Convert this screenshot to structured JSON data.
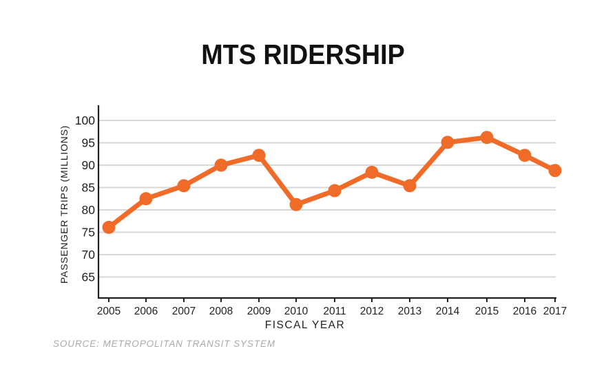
{
  "header": {
    "title": "MTS RIDERSHIP"
  },
  "footer": {
    "source": "SOURCE: METROPOLITAN TRANSIT SYSTEM"
  },
  "colors": {
    "line": "#F06A28",
    "axis": "#1f1f1f",
    "grid": "#d7d7d7",
    "tick_label": "#1f1f1f",
    "title": "#111111",
    "source": "#a8aaad",
    "background": "#ffffff"
  },
  "chart_data": {
    "type": "line",
    "title": "MTS RIDERSHIP",
    "xlabel": "FISCAL YEAR",
    "ylabel": "PASSENGER TRIPS (MILLIONS)",
    "categories": [
      "2005",
      "2006",
      "2007",
      "2008",
      "2009",
      "2010",
      "2011",
      "2012",
      "2013",
      "2014",
      "2015",
      "2016",
      "2017"
    ],
    "values": [
      76.1,
      82.5,
      85.4,
      90.0,
      92.2,
      81.2,
      84.3,
      88.4,
      85.4,
      95.1,
      96.2,
      92.2,
      88.8
    ],
    "yticks": [
      65,
      70,
      75,
      80,
      85,
      90,
      95,
      100
    ],
    "ylim": [
      60,
      103.5
    ],
    "grid": true,
    "legend": "none",
    "marker": "circle",
    "line_width": 7,
    "marker_radius": 9.5
  }
}
